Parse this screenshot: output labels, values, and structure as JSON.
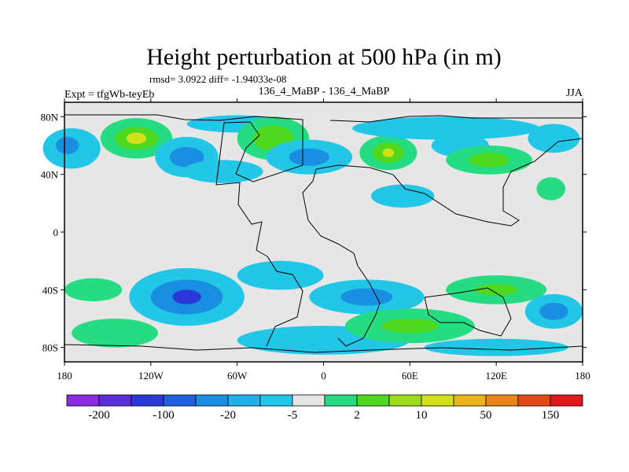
{
  "chart_data": {
    "type": "heatmap",
    "title": "Height perturbation at 500 hPa (in m)",
    "stats": "rmsd= 3.0922 diff= -1.94033e-08",
    "expt": "Expt = tfgWb-teyEb",
    "case_label": "136_4_MaBP - 136_4_MaBP",
    "season": "JJA",
    "x_ticks": [
      "180",
      "120W",
      "60W",
      "0",
      "60E",
      "120E",
      "180"
    ],
    "x_tick_values": [
      -180,
      -120,
      -60,
      0,
      60,
      120,
      180
    ],
    "y_ticks": [
      "80N",
      "40N",
      "0",
      "40S",
      "80S"
    ],
    "y_tick_values": [
      80,
      40,
      0,
      -40,
      -80
    ],
    "xlim": [
      -180,
      180
    ],
    "ylim": [
      -90,
      90
    ],
    "colorbar": {
      "labels": [
        "-200",
        "-100",
        "-20",
        "-5",
        "2",
        "10",
        "50",
        "150"
      ],
      "colors": [
        "#8a2be2",
        "#5b2fd8",
        "#2b38d9",
        "#2060e0",
        "#1a8ee0",
        "#20b0ea",
        "#22c6e6",
        "#e6e6e6",
        "#25dc83",
        "#4ed81e",
        "#9ddc1c",
        "#d2e01a",
        "#e8b418",
        "#e88418",
        "#e24818",
        "#e0181e"
      ]
    },
    "blobs": [
      {
        "lon": -175,
        "lat": 58,
        "rx": 20,
        "ry": 14,
        "level": "-5"
      },
      {
        "lon": -178,
        "lat": 60,
        "rx": 8,
        "ry": 6,
        "level": "-20"
      },
      {
        "lon": -130,
        "lat": 65,
        "rx": 25,
        "ry": 14,
        "level": "2"
      },
      {
        "lon": -130,
        "lat": 65,
        "rx": 15,
        "ry": 8,
        "level": "10"
      },
      {
        "lon": -130,
        "lat": 65,
        "rx": 7,
        "ry": 4,
        "level": "50"
      },
      {
        "lon": -95,
        "lat": 52,
        "rx": 22,
        "ry": 14,
        "level": "-5"
      },
      {
        "lon": -95,
        "lat": 52,
        "rx": 12,
        "ry": 7,
        "level": "-20"
      },
      {
        "lon": -70,
        "lat": 42,
        "rx": 28,
        "ry": 8,
        "level": "-5"
      },
      {
        "lon": -60,
        "lat": 75,
        "rx": 35,
        "ry": 6,
        "level": "-5"
      },
      {
        "lon": -35,
        "lat": 65,
        "rx": 25,
        "ry": 15,
        "level": "2"
      },
      {
        "lon": -35,
        "lat": 65,
        "rx": 14,
        "ry": 9,
        "level": "10"
      },
      {
        "lon": -10,
        "lat": 52,
        "rx": 30,
        "ry": 12,
        "level": "-5"
      },
      {
        "lon": -10,
        "lat": 52,
        "rx": 14,
        "ry": 6,
        "level": "-20"
      },
      {
        "lon": 45,
        "lat": 55,
        "rx": 20,
        "ry": 12,
        "level": "2"
      },
      {
        "lon": 45,
        "lat": 55,
        "rx": 11,
        "ry": 7,
        "level": "10"
      },
      {
        "lon": 45,
        "lat": 55,
        "rx": 4,
        "ry": 3,
        "level": "50"
      },
      {
        "lon": 85,
        "lat": 72,
        "rx": 65,
        "ry": 8,
        "level": "-5"
      },
      {
        "lon": 95,
        "lat": 60,
        "rx": 20,
        "ry": 8,
        "level": "-5"
      },
      {
        "lon": 55,
        "lat": 25,
        "rx": 22,
        "ry": 8,
        "level": "-5"
      },
      {
        "lon": 115,
        "lat": 50,
        "rx": 30,
        "ry": 10,
        "level": "2"
      },
      {
        "lon": 115,
        "lat": 50,
        "rx": 14,
        "ry": 5,
        "level": "10"
      },
      {
        "lon": 160,
        "lat": 65,
        "rx": 18,
        "ry": 10,
        "level": "-5"
      },
      {
        "lon": 158,
        "lat": 30,
        "rx": 10,
        "ry": 8,
        "level": "2"
      },
      {
        "lon": -160,
        "lat": -40,
        "rx": 20,
        "ry": 8,
        "level": "2"
      },
      {
        "lon": -145,
        "lat": -70,
        "rx": 30,
        "ry": 10,
        "level": "2"
      },
      {
        "lon": -95,
        "lat": -45,
        "rx": 40,
        "ry": 20,
        "level": "-5"
      },
      {
        "lon": -95,
        "lat": -45,
        "rx": 25,
        "ry": 12,
        "level": "-20"
      },
      {
        "lon": -95,
        "lat": -45,
        "rx": 10,
        "ry": 5,
        "level": "-100"
      },
      {
        "lon": -30,
        "lat": -30,
        "rx": 30,
        "ry": 10,
        "level": "-5"
      },
      {
        "lon": 30,
        "lat": -45,
        "rx": 40,
        "ry": 12,
        "level": "-5"
      },
      {
        "lon": 30,
        "lat": -45,
        "rx": 18,
        "ry": 6,
        "level": "-20"
      },
      {
        "lon": 0,
        "lat": -75,
        "rx": 60,
        "ry": 10,
        "level": "-5"
      },
      {
        "lon": 60,
        "lat": -65,
        "rx": 45,
        "ry": 12,
        "level": "2"
      },
      {
        "lon": 60,
        "lat": -65,
        "rx": 20,
        "ry": 5,
        "level": "10"
      },
      {
        "lon": 120,
        "lat": -40,
        "rx": 35,
        "ry": 10,
        "level": "2"
      },
      {
        "lon": 120,
        "lat": -40,
        "rx": 15,
        "ry": 4,
        "level": "10"
      },
      {
        "lon": 160,
        "lat": -55,
        "rx": 20,
        "ry": 12,
        "level": "-5"
      },
      {
        "lon": 160,
        "lat": -55,
        "rx": 10,
        "ry": 6,
        "level": "-20"
      },
      {
        "lon": 120,
        "lat": -80,
        "rx": 50,
        "ry": 6,
        "level": "-5"
      }
    ]
  }
}
